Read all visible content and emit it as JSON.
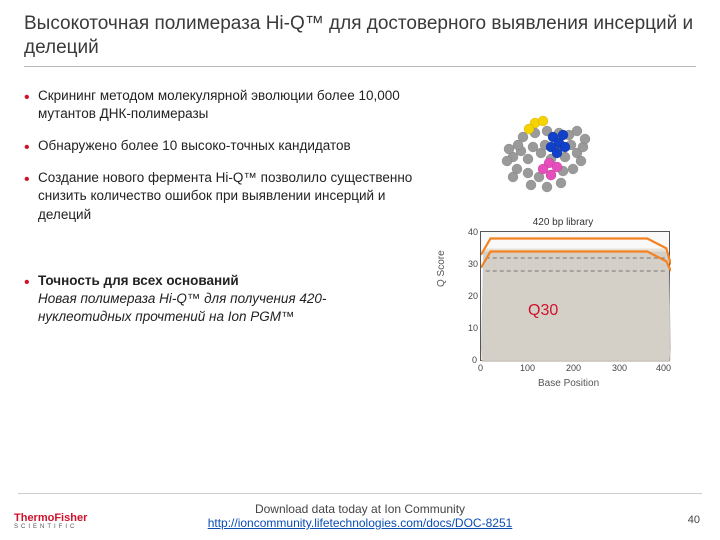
{
  "title": "Высокоточная полимераза Hi-Q™ для достоверного выявления инсерций и делеций",
  "bullets": [
    "Скрининг методом молекулярной эволюции более 10,000 мутантов ДНК-полимеразы",
    "Обнаружено более 10 высоко-точных кандидатов",
    "Создание нового фермента Hi-Q™ позволило существенно снизить количество ошибок при выявлении инсерций и делеций"
  ],
  "secondary_lead": "Точность для всех оснований",
  "secondary_sub": "Новая полимераза Hi-Q™ для получения 420-нуклеотидных прочтений на Ion PGM™",
  "chart": {
    "title": "420 bp library",
    "ylabel": "Q Score",
    "xlabel": "Base Position",
    "ylim": [
      0,
      40
    ],
    "ytick_step": 10,
    "xlim": [
      0,
      400
    ],
    "xtick_step": 100,
    "q30_label": "Q30",
    "colors": {
      "band_outer": "#d9d0c3",
      "band_inner": "#c7c7c7",
      "line_main": "#f58220",
      "line_dash": "#777777",
      "border": "#555555",
      "bg": "#fbfbfb"
    },
    "main_line": [
      {
        "x": 0,
        "y": 33
      },
      {
        "x": 20,
        "y": 38
      },
      {
        "x": 60,
        "y": 38
      },
      {
        "x": 100,
        "y": 38
      },
      {
        "x": 150,
        "y": 38
      },
      {
        "x": 200,
        "y": 38
      },
      {
        "x": 250,
        "y": 38
      },
      {
        "x": 300,
        "y": 38
      },
      {
        "x": 350,
        "y": 38
      },
      {
        "x": 390,
        "y": 35
      },
      {
        "x": 400,
        "y": 30
      }
    ],
    "dash_upper": 32,
    "dash_lower": 28,
    "band_upper": 34,
    "band_lower": 4
  },
  "footer_line1": "Download data today at Ion Community",
  "footer_link": "http://ioncommunity.lifetechnologies.com/docs/DOC-8251",
  "slide_number": "40",
  "logo_top": "ThermoFisher",
  "logo_bottom": "SCIENTIFIC"
}
